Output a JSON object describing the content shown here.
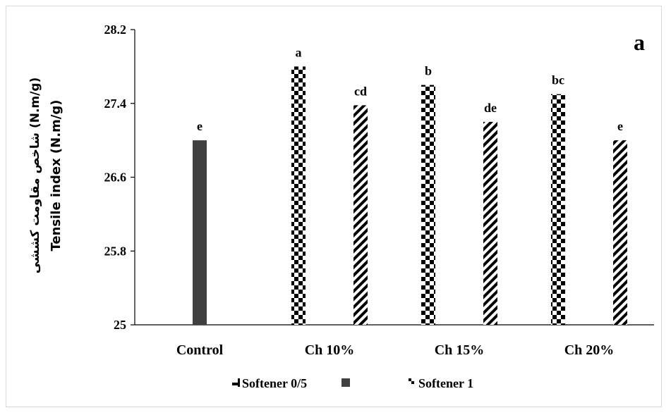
{
  "chart_data": {
    "type": "bar",
    "corner_label": "a",
    "ylabel_fa": "شاخص مقاومت کششی (N.m/g)",
    "ylabel_en": "Tensile index (N.m/g)",
    "ylim": [
      25,
      28.2
    ],
    "yticks": [
      "25",
      "25.8",
      "26.6",
      "27.4",
      "28.2"
    ],
    "categories": [
      "Control",
      "Ch 10%",
      "Ch 15%",
      "Ch 20%"
    ],
    "series": [
      {
        "name": "",
        "color": "#404040",
        "pattern": "solid",
        "values": [
          27.0,
          null,
          null,
          null
        ],
        "labels": [
          "e",
          "",
          "",
          ""
        ]
      },
      {
        "name": "Softener 0/5",
        "color": "#000000",
        "pattern": "checker",
        "values": [
          null,
          27.8,
          27.6,
          27.5
        ],
        "labels": [
          "",
          "a",
          "b",
          "bc"
        ]
      },
      {
        "name": "Softener 1",
        "color": "#000000",
        "pattern": "diagonal",
        "values": [
          null,
          27.38,
          27.2,
          27.0
        ],
        "labels": [
          "",
          "cd",
          "de",
          "e"
        ]
      }
    ],
    "legend_position": "bottom",
    "grid": false
  }
}
